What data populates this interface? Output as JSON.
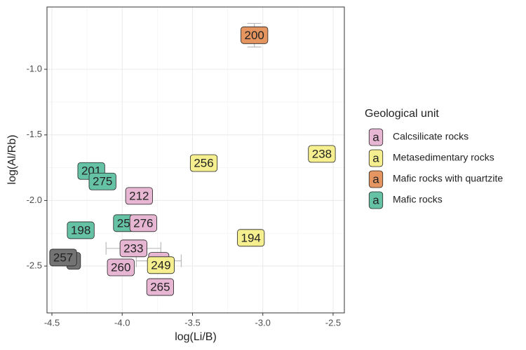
{
  "chart_data": {
    "type": "scatter",
    "x_label": "log(Li/B)",
    "y_label": "log(Al/Rb)",
    "legend_title": "Geological unit",
    "legend_key": "a",
    "legend_position": "right",
    "xlim": [
      -4.535,
      -2.42
    ],
    "ylim": [
      -2.857,
      -0.525
    ],
    "xticks": [
      -4.5,
      {
        "value": -4,
        "label": "-4.0"
      },
      -3.5,
      {
        "value": -3,
        "label": "-3.0"
      },
      -2.5
    ],
    "yticks": [
      {
        "value": -1,
        "label": "-1.0"
      },
      -1.5,
      {
        "value": -2,
        "label": "-2.0"
      },
      -2.5
    ],
    "grid": true,
    "series": [
      {
        "color": "#737373",
        "x": [
          -4.345,
          -4.42
        ],
        "values": [
          -2.46,
          -2.435
        ],
        "labels": [
          "3",
          "257"
        ]
      },
      {
        "name": "Mafic rocks",
        "color": "#66c2a5",
        "x": [
          -4.22,
          -4.14,
          -4.295,
          -3.99
        ],
        "values": [
          -1.775,
          -1.855,
          -2.227,
          -2.173
        ],
        "labels": [
          "201",
          "275",
          "198",
          "25"
        ],
        "yerr": [
          null,
          0.03,
          null,
          null
        ]
      },
      {
        "name": "Calcsilicate rocks",
        "color": "#e7b6d3",
        "x": [
          -3.88,
          -3.85,
          -3.74,
          -3.92,
          -4.01,
          -3.73
        ],
        "values": [
          -1.965,
          -2.173,
          -2.46,
          -2.365,
          -2.51,
          -2.66
        ],
        "labels": [
          "212",
          "276",
          "92",
          "233",
          "260",
          "265"
        ],
        "yerr": [
          0.045,
          null,
          null,
          null,
          null,
          0.045
        ],
        "xerr": [
          null,
          null,
          0.16,
          0.195,
          null,
          null
        ]
      },
      {
        "name": "Metasedimentary rocks",
        "color": "#f6ef8f",
        "x": [
          -3.42,
          -2.58,
          -3.085,
          -3.725
        ],
        "values": [
          -1.715,
          -1.645,
          -2.285,
          -2.493
        ],
        "labels": [
          "256",
          "238",
          "194",
          "249"
        ],
        "yerr": [
          0.03,
          null,
          null,
          null
        ]
      },
      {
        "name": "Mafic rocks with quartzite",
        "color": "#e5955f",
        "x": [
          -3.06
        ],
        "values": [
          -0.74
        ],
        "labels": [
          "200"
        ],
        "yerr": [
          0.09
        ]
      }
    ],
    "legend_order": [
      2,
      3,
      4,
      1
    ]
  }
}
